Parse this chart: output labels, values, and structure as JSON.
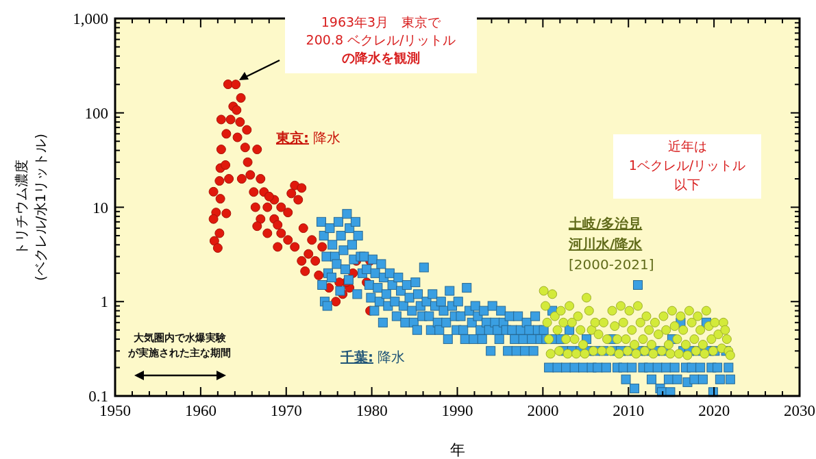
{
  "chart_data": {
    "type": "scatter",
    "xlabel": "年",
    "ylabel": "トリチウム濃度\n(ベクレル/水1リットル)",
    "log": "y",
    "xlim": [
      1950,
      2030
    ],
    "ylim": [
      0.1,
      1000
    ],
    "xticks": [
      1950,
      {
        "value": 1952,
        "label": null
      },
      {
        "value": 1954,
        "label": null
      },
      {
        "value": 1956,
        "label": null
      },
      {
        "value": 1958,
        "label": null
      },
      1960,
      {
        "value": 1962,
        "label": null
      },
      {
        "value": 1964,
        "label": null
      },
      {
        "value": 1966,
        "label": null
      },
      {
        "value": 1968,
        "label": null
      },
      1970,
      {
        "value": 1972,
        "label": null
      },
      {
        "value": 1974,
        "label": null
      },
      {
        "value": 1976,
        "label": null
      },
      {
        "value": 1978,
        "label": null
      },
      1980,
      {
        "value": 1982,
        "label": null
      },
      {
        "value": 1984,
        "label": null
      },
      {
        "value": 1986,
        "label": null
      },
      {
        "value": 1988,
        "label": null
      },
      1990,
      {
        "value": 1992,
        "label": null
      },
      {
        "value": 1994,
        "label": null
      },
      {
        "value": 1996,
        "label": null
      },
      {
        "value": 1998,
        "label": null
      },
      2000,
      {
        "value": 2002,
        "label": null
      },
      {
        "value": 2004,
        "label": null
      },
      {
        "value": 2006,
        "label": null
      },
      {
        "value": 2008,
        "label": null
      },
      2010,
      {
        "value": 2012,
        "label": null
      },
      {
        "value": 2014,
        "label": null
      },
      {
        "value": 2016,
        "label": null
      },
      {
        "value": 2018,
        "label": null
      },
      2020,
      {
        "value": 2022,
        "label": null
      },
      {
        "value": 2024,
        "label": null
      },
      {
        "value": 2026,
        "label": null
      },
      {
        "value": 2028,
        "label": null
      },
      2030
    ],
    "yticks": [
      0.1,
      {
        "value": 0.2,
        "label": null
      },
      {
        "value": 0.3,
        "label": null
      },
      {
        "value": 0.4,
        "label": null
      },
      {
        "value": 0.5,
        "label": null
      },
      {
        "value": 0.6,
        "label": null
      },
      {
        "value": 0.7,
        "label": null
      },
      {
        "value": 0.8,
        "label": null
      },
      {
        "value": 0.9,
        "label": null
      },
      1,
      {
        "value": 2,
        "label": null
      },
      {
        "value": 3,
        "label": null
      },
      {
        "value": 4,
        "label": null
      },
      {
        "value": 5,
        "label": null
      },
      {
        "value": 6,
        "label": null
      },
      {
        "value": 7,
        "label": null
      },
      {
        "value": 8,
        "label": null
      },
      {
        "value": 9,
        "label": null
      },
      10,
      {
        "value": 20,
        "label": null
      },
      {
        "value": 30,
        "label": null
      },
      {
        "value": 40,
        "label": null
      },
      {
        "value": 50,
        "label": null
      },
      {
        "value": 60,
        "label": null
      },
      {
        "value": 70,
        "label": null
      },
      {
        "value": 80,
        "label": null
      },
      {
        "value": 90,
        "label": null
      },
      100,
      {
        "value": 200,
        "label": null
      },
      {
        "value": 300,
        "label": null
      },
      {
        "value": 400,
        "label": null
      },
      {
        "value": 500,
        "label": null
      },
      {
        "value": 600,
        "label": null
      },
      {
        "value": 700,
        "label": null
      },
      {
        "value": 800,
        "label": null
      },
      {
        "value": 900,
        "label": null
      },
      {
        "value": 1000,
        "label": "1,000"
      }
    ],
    "grid": false,
    "legend": false,
    "series": [
      {
        "name": "東京: 降水",
        "color": "#e0190c",
        "marker": "circle",
        "x": [
          1963.2,
          1964.1,
          1964.7,
          1963.8,
          1964.2,
          1962.4,
          1963.5,
          1964.6,
          1963.0,
          1964.3,
          1965.4,
          1962.4,
          1965.2,
          1966.6,
          1962.3,
          1962.9,
          1965.5,
          1962.2,
          1963.3,
          1964.8,
          1965.8,
          1967.0,
          1961.5,
          1962.3,
          1961.8,
          1963.0,
          1961.5,
          1962.2,
          1961.6,
          1962.0,
          1966.2,
          1966.4,
          1967.4,
          1967.8,
          1968.6,
          1968.6,
          1969.4,
          1970.2,
          1971.0,
          1971.8,
          1971.4,
          1967.0,
          1966.6,
          1967.8,
          1969.4,
          1970.2,
          1969.0,
          1971.0,
          1971.8,
          1972.6,
          1973.4,
          1972.2,
          1973.8,
          1974.2,
          1975.0,
          1975.8,
          1976.6,
          1977.4,
          1977.8,
          1978.2,
          1979.8,
          1979.8,
          1977.0,
          1979.4,
          1976.2,
          1968.0,
          1970.6,
          1969.0,
          1972.0,
          1973.0
        ],
        "values": [
          200.8,
          200,
          144,
          117,
          107,
          85,
          85,
          80,
          60,
          55,
          66,
          41,
          43,
          41,
          26,
          28,
          30,
          19,
          20,
          20,
          22,
          20,
          14.6,
          12.3,
          8.8,
          8.6,
          7.5,
          5.3,
          4.4,
          3.7,
          14.5,
          10,
          14.5,
          10,
          12,
          7.5,
          10,
          8.8,
          17,
          16,
          12,
          7.5,
          6.3,
          5.3,
          5.3,
          4.5,
          3.8,
          3.8,
          2.7,
          3.2,
          2.7,
          2.1,
          1.9,
          3.8,
          1.4,
          1.0,
          1.2,
          1.4,
          2.0,
          2.7,
          2.7,
          0.8,
          1.6,
          1.6,
          1.6,
          13,
          14,
          6.5,
          6,
          4.5
        ]
      },
      {
        "name": "千葉: 降水",
        "color": "#3a9fe2",
        "marker": "square",
        "x": [
          1974.1,
          1974.4,
          1974.7,
          1974.9,
          1974.2,
          1974.5,
          1974.8,
          1975.1,
          1975.4,
          1975.7,
          1975.9,
          1975.3,
          1976.1,
          1976.4,
          1976.7,
          1976.9,
          1976.3,
          1977.1,
          1977.4,
          1977.7,
          1977.9,
          1977.3,
          1978.1,
          1978.4,
          1978.7,
          1978.9,
          1978.3,
          1979.1,
          1979.4,
          1979.7,
          1979.9,
          1980.1,
          1980.4,
          1980.7,
          1980.9,
          1980.3,
          1981.1,
          1981.4,
          1981.7,
          1981.9,
          1981.3,
          1982.1,
          1982.4,
          1982.7,
          1982.9,
          1983.1,
          1983.4,
          1983.7,
          1983.9,
          1984.1,
          1984.4,
          1984.7,
          1984.9,
          1985.1,
          1985.4,
          1985.7,
          1985.9,
          1985.3,
          1986.1,
          1986.4,
          1986.7,
          1986.9,
          1987.1,
          1987.4,
          1987.7,
          1987.9,
          1988.1,
          1988.4,
          1988.7,
          1988.9,
          1989.1,
          1989.4,
          1989.7,
          1989.9,
          1990.1,
          1990.4,
          1990.7,
          1990.9,
          1991.1,
          1991.4,
          1991.7,
          1991.9,
          1992.1,
          1992.4,
          1992.7,
          1992.9,
          1993.1,
          1993.4,
          1993.7,
          1993.9,
          1994.1,
          1994.4,
          1994.7,
          1994.9,
          1995.1,
          1995.4,
          1995.7,
          1995.9,
          1996.1,
          1996.4,
          1996.7,
          1996.9,
          1997.1,
          1997.4,
          1997.7,
          1997.9,
          1998.1,
          1998.4,
          1998.7,
          1998.9,
          1999.1,
          1999.4,
          1999.7,
          2000.1,
          2000.4,
          2000.7,
          2001.1,
          2001.4,
          2001.7,
          2002.1,
          2002.4,
          2002.7,
          2003.1,
          2003.4,
          2003.7,
          2004.4,
          2004.7,
          2005.1,
          2005.4,
          2005.7,
          2006.1,
          2006.4,
          2007.1,
          2007.4,
          2008.1,
          2008.4,
          2008.7,
          2009.1,
          2009.4,
          2009.7,
          2010.1,
          2010.4,
          2010.7,
          2011.1,
          2011.4,
          2011.7,
          2012.1,
          2012.4,
          2012.7,
          2013.1,
          2013.4,
          2013.7,
          2013.9,
          2014.1,
          2014.4,
          2014.7,
          2014.9,
          2015.1,
          2015.4,
          2015.7,
          2016.1,
          2016.4,
          2016.7,
          2016.9,
          2017.1,
          2017.4,
          2017.7,
          2018.1,
          2018.4,
          2018.7,
          2019.1,
          2019.4,
          2019.7,
          2019.9,
          2020.1,
          2020.4,
          2020.7,
          2021.4,
          2021.7,
          2021.9
        ],
        "values": [
          7,
          5,
          3,
          2,
          1.5,
          1.0,
          0.9,
          6,
          4,
          3,
          2.5,
          1.8,
          7,
          5,
          3.5,
          2.2,
          1.3,
          8.5,
          6,
          4,
          2.8,
          1.7,
          7,
          5,
          3,
          2,
          1.2,
          3,
          2.2,
          1.5,
          1.1,
          2.8,
          2,
          1.4,
          1.0,
          0.8,
          2.5,
          1.8,
          1.2,
          0.9,
          0.6,
          2,
          1.5,
          1.0,
          0.7,
          1.8,
          1.3,
          0.9,
          0.6,
          1.5,
          1.1,
          0.8,
          0.6,
          1.6,
          1.2,
          0.9,
          0.7,
          0.5,
          2.3,
          1.0,
          0.7,
          0.5,
          1.2,
          0.9,
          0.6,
          0.5,
          1.0,
          0.8,
          0.6,
          0.4,
          1.3,
          0.9,
          0.7,
          0.5,
          1.0,
          0.7,
          0.5,
          0.4,
          1.4,
          0.8,
          0.6,
          0.4,
          0.9,
          0.7,
          0.5,
          0.4,
          0.8,
          0.6,
          0.5,
          0.3,
          0.9,
          0.6,
          0.5,
          0.4,
          0.8,
          0.6,
          0.5,
          0.3,
          0.7,
          0.5,
          0.4,
          0.3,
          0.7,
          0.5,
          0.4,
          0.3,
          0.6,
          0.5,
          0.4,
          0.3,
          0.7,
          0.5,
          0.4,
          0.5,
          0.4,
          0.2,
          0.8,
          0.4,
          0.2,
          0.4,
          0.3,
          0.2,
          0.5,
          0.3,
          0.2,
          0.3,
          0.2,
          0.4,
          0.3,
          0.2,
          0.3,
          0.2,
          0.3,
          0.2,
          0.4,
          0.3,
          0.2,
          0.3,
          0.2,
          0.15,
          0.3,
          0.2,
          0.12,
          1.5,
          0.3,
          0.2,
          0.3,
          0.2,
          0.15,
          0.3,
          0.2,
          0.12,
          0.11,
          0.3,
          0.2,
          0.15,
          0.11,
          0.4,
          0.2,
          0.15,
          0.6,
          0.3,
          0.2,
          0.14,
          0.3,
          0.2,
          0.15,
          0.3,
          0.2,
          0.15,
          0.6,
          0.3,
          0.2,
          0.11,
          0.3,
          0.2,
          0.15,
          0.3,
          0.2,
          0.15
        ]
      },
      {
        "name": "土岐/多治見河川水/降水\n[2000-2021]",
        "color": "#d3ea3a",
        "marker": "circle",
        "x": [
          2000.1,
          2000.3,
          2000.5,
          2000.7,
          2000.9,
          2001.1,
          2001.4,
          2001.7,
          2001.9,
          2002.1,
          2002.4,
          2002.7,
          2002.9,
          2003.1,
          2003.4,
          2003.7,
          2003.9,
          2004.1,
          2004.4,
          2004.7,
          2004.9,
          2005.1,
          2005.4,
          2005.7,
          2005.9,
          2006.1,
          2006.5,
          2006.9,
          2007.1,
          2007.5,
          2007.9,
          2008.1,
          2008.4,
          2008.7,
          2008.9,
          2009.1,
          2009.4,
          2009.7,
          2009.9,
          2010.1,
          2010.4,
          2010.7,
          2010.9,
          2011.1,
          2011.4,
          2011.7,
          2011.9,
          2012.1,
          2012.4,
          2012.7,
          2012.9,
          2013.1,
          2013.5,
          2013.9,
          2014.1,
          2014.4,
          2014.7,
          2014.9,
          2015.1,
          2015.4,
          2015.7,
          2015.9,
          2016.1,
          2016.4,
          2016.7,
          2016.9,
          2017.1,
          2017.4,
          2017.7,
          2017.9,
          2018.1,
          2018.4,
          2018.7,
          2018.9,
          2019.1,
          2019.4,
          2019.7,
          2019.9,
          2020.1,
          2020.5,
          2020.9,
          2021.1,
          2021.3,
          2021.5,
          2021.7,
          2021.9
        ],
        "values": [
          1.3,
          0.9,
          0.6,
          0.4,
          0.28,
          1.2,
          0.7,
          0.5,
          0.3,
          0.8,
          0.6,
          0.4,
          0.28,
          0.9,
          0.6,
          0.4,
          0.28,
          0.7,
          0.5,
          0.35,
          0.28,
          1.1,
          0.8,
          0.5,
          0.3,
          0.6,
          0.45,
          0.3,
          0.6,
          0.4,
          0.3,
          0.8,
          0.55,
          0.4,
          0.28,
          0.9,
          0.6,
          0.4,
          0.3,
          0.8,
          0.5,
          0.35,
          0.28,
          0.9,
          0.6,
          0.4,
          0.3,
          0.7,
          0.5,
          0.35,
          0.28,
          0.6,
          0.45,
          0.3,
          0.7,
          0.5,
          0.35,
          0.28,
          0.8,
          0.55,
          0.4,
          0.28,
          0.7,
          0.5,
          0.35,
          0.27,
          0.8,
          0.6,
          0.4,
          0.3,
          0.7,
          0.5,
          0.35,
          0.28,
          0.8,
          0.55,
          0.4,
          0.3,
          0.6,
          0.45,
          0.32,
          0.6,
          0.5,
          0.4,
          0.3,
          0.27
        ]
      }
    ],
    "annotations": [
      "1963年3月　東京で\n200.8 ベクレル/リットルの降水を観測",
      "近年は\n1ベクレル/リットル以下",
      "大気圏内で水爆実験が実施された主な期間"
    ]
  }
}
